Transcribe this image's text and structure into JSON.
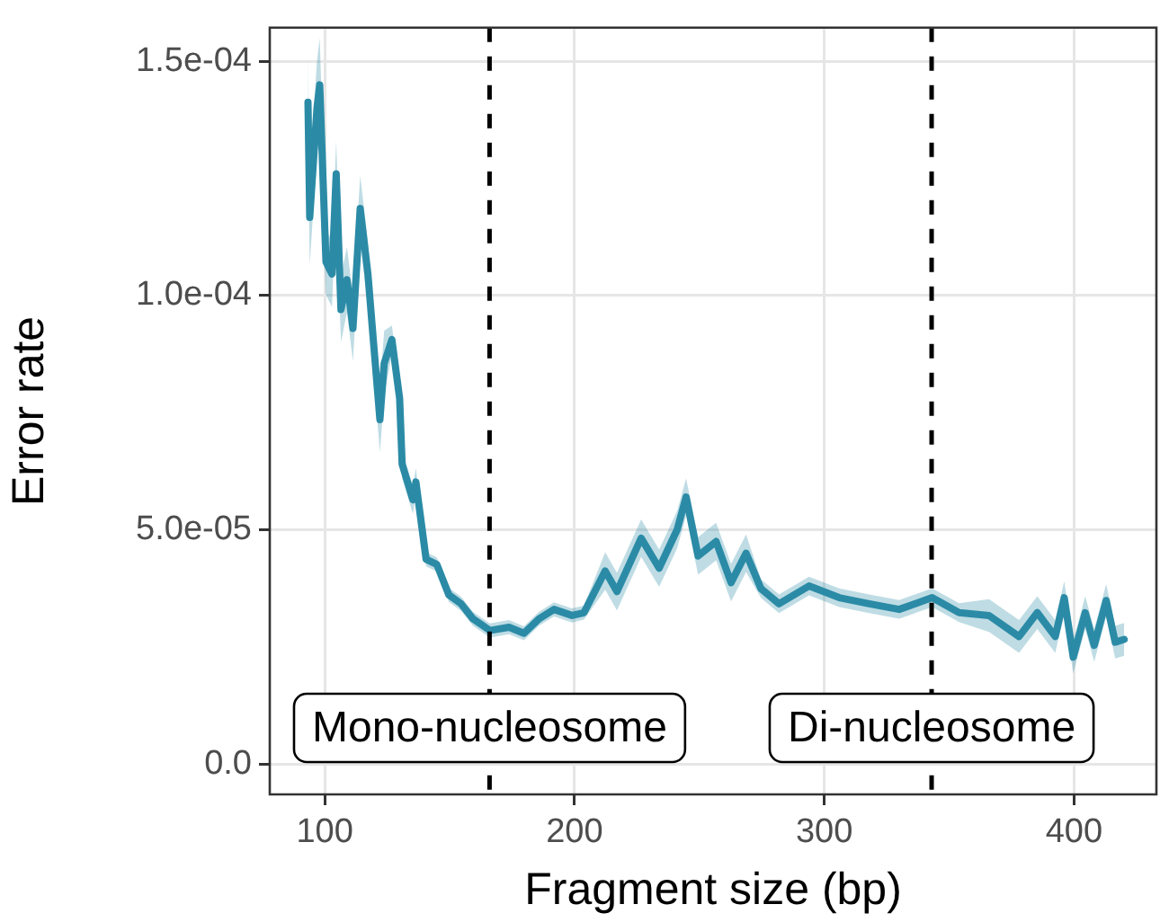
{
  "chart_data": {
    "type": "line",
    "xlabel": "Fragment size (bp)",
    "ylabel": "Error rate",
    "xlim": [
      78,
      433
    ],
    "xticks": [
      100,
      200,
      300,
      400
    ],
    "ylim": [
      -6.5e-06,
      0.0001572
    ],
    "yticks": [
      {
        "value": 0,
        "label": "0.0"
      },
      {
        "value": 5e-05,
        "label": "5.0e-05"
      },
      {
        "value": 0.0001,
        "label": "1.0e-04"
      },
      {
        "value": 0.00015,
        "label": "1.5e-04"
      }
    ],
    "grid": true,
    "legend": false,
    "marker": "none",
    "line_style": "solid",
    "ref_lines": [
      {
        "axis": "x",
        "value": 166,
        "label": "Mono-nucleosome",
        "color": "#000000",
        "line_style": "dashed"
      },
      {
        "axis": "x",
        "value": 343,
        "label": "Di-nucleosome",
        "color": "#000000",
        "line_style": "dashed"
      }
    ],
    "series": [
      {
        "color": "#2b8ba6",
        "x": [
          93.3,
          94,
          96.9,
          98,
          100.5,
          102.9,
          104.6,
          106.5,
          108.9,
          111.3,
          114.2,
          117.3,
          119.7,
          122.1,
          123.8,
          126.9,
          130,
          131,
          135.3,
          136.5,
          140.6,
          144.9,
          149.7,
          154.6,
          159.3,
          166.1,
          173.8,
          179.8,
          185.8,
          191.8,
          199,
          203.8,
          212.3,
          217,
          226.7,
          233.9,
          241.1,
          244.7,
          249.5,
          256.7,
          262.7,
          268.7,
          274.7,
          281.9,
          293.9,
          306,
          318,
          330,
          343.2,
          354,
          366,
          378,
          385.3,
          392.5,
          396.1,
          399.7,
          404.5,
          408.1,
          412.9,
          416.5,
          420.1
        ],
        "values": [
          0.0001413,
          0.0001167,
          0.00014,
          0.000145,
          0.0001072,
          0.0001046,
          0.000126,
          9.7e-05,
          0.0001034,
          9.3e-05,
          0.0001186,
          0.0001046,
          8.9e-05,
          7.35e-05,
          8.55e-05,
          9.06e-05,
          7.8e-05,
          6.4e-05,
          5.64e-05,
          6.02e-05,
          4.37e-05,
          4.26e-05,
          3.61e-05,
          3.42e-05,
          3.1e-05,
          2.85e-05,
          2.92e-05,
          2.79e-05,
          3.1e-05,
          3.3e-05,
          3.17e-05,
          3.23e-05,
          4.12e-05,
          3.68e-05,
          4.82e-05,
          4.18e-05,
          5e-05,
          5.7e-05,
          4.44e-05,
          4.75e-05,
          3.87e-05,
          4.5e-05,
          3.74e-05,
          3.42e-05,
          3.8e-05,
          3.55e-05,
          3.42e-05,
          3.3e-05,
          3.55e-05,
          3.23e-05,
          3.17e-05,
          2.72e-05,
          3.23e-05,
          2.72e-05,
          3.55e-05,
          2.28e-05,
          3.23e-05,
          2.53e-05,
          3.49e-05,
          2.6e-05,
          2.66e-05
        ],
        "lower": [
          0.0001313,
          0.0001067,
          0.00013,
          0.000135,
          0.0001002,
          9.76e-05,
          0.000119,
          9e-05,
          9.64e-05,
          8.6e-05,
          0.0001116,
          9.76e-05,
          8.2e-05,
          6.65e-05,
          7.85e-05,
          8.76e-05,
          7.5e-05,
          6.1e-05,
          5.34e-05,
          5.72e-05,
          4.22e-05,
          4.11e-05,
          3.46e-05,
          3.27e-05,
          2.95e-05,
          2.7e-05,
          2.77e-05,
          2.64e-05,
          2.95e-05,
          3.15e-05,
          3.02e-05,
          3.08e-05,
          3.72e-05,
          3.28e-05,
          4.42e-05,
          3.78e-05,
          4.6e-05,
          5.3e-05,
          4.04e-05,
          4.35e-05,
          3.47e-05,
          4.1e-05,
          3.54e-05,
          3.22e-05,
          3.6e-05,
          3.35e-05,
          3.22e-05,
          3.1e-05,
          3.35e-05,
          3.03e-05,
          2.82e-05,
          2.37e-05,
          2.88e-05,
          2.37e-05,
          3.2e-05,
          1.93e-05,
          2.88e-05,
          2.18e-05,
          3.14e-05,
          2.25e-05,
          2.31e-05
        ],
        "upper": [
          0.0001513,
          0.0001267,
          0.00015,
          0.000155,
          0.0001142,
          0.0001116,
          0.000133,
          0.000104,
          0.0001104,
          0.0001,
          0.0001256,
          0.0001116,
          9.6e-05,
          8.05e-05,
          9.25e-05,
          9.36e-05,
          8.1e-05,
          6.7e-05,
          5.94e-05,
          6.32e-05,
          4.52e-05,
          4.41e-05,
          3.76e-05,
          3.57e-05,
          3.25e-05,
          3e-05,
          3.07e-05,
          2.94e-05,
          3.25e-05,
          3.45e-05,
          3.32e-05,
          3.38e-05,
          4.52e-05,
          4.08e-05,
          5.22e-05,
          4.58e-05,
          5.4e-05,
          6.1e-05,
          4.84e-05,
          5.15e-05,
          4.27e-05,
          4.9e-05,
          3.94e-05,
          3.62e-05,
          4e-05,
          3.75e-05,
          3.62e-05,
          3.5e-05,
          3.75e-05,
          3.43e-05,
          3.52e-05,
          3.07e-05,
          3.58e-05,
          3.07e-05,
          3.9e-05,
          2.63e-05,
          3.58e-05,
          2.88e-05,
          3.84e-05,
          2.95e-05,
          3.01e-05
        ]
      }
    ]
  }
}
